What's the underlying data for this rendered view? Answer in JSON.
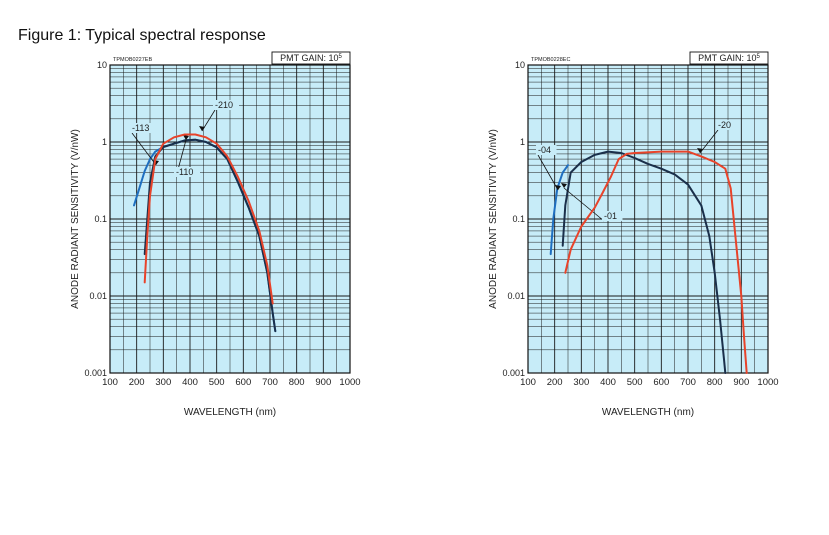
{
  "figure_title": "Figure 1: Typical spectral response",
  "chart_data": [
    {
      "type": "line",
      "id_label": "TPMOB0227EB",
      "gain_label": "PMT GAIN: 10",
      "gain_exp": "5",
      "xlabel": "WAVELENGTH (nm)",
      "ylabel": "ANODE RADIANT SENSITIVITY (V/nW)",
      "xlim": [
        100,
        1000
      ],
      "ylim": [
        0.001,
        10
      ],
      "y_scale": "log",
      "grid": true,
      "x_ticks": [
        "100",
        "200",
        "300",
        "400",
        "500",
        "600",
        "700",
        "800",
        "900",
        "1000"
      ],
      "y_ticks": [
        "10",
        "1",
        "0.1",
        "0.01",
        "0.001"
      ],
      "series": [
        {
          "name": "-113",
          "color": "#1f6fc0",
          "points": [
            [
              190,
              0.15
            ],
            [
              210,
              0.25
            ],
            [
              230,
              0.42
            ],
            [
              250,
              0.6
            ],
            [
              270,
              0.75
            ],
            [
              300,
              0.86
            ],
            [
              340,
              0.95
            ],
            [
              380,
              1.05
            ],
            [
              420,
              1.07
            ],
            [
              460,
              1.0
            ],
            [
              500,
              0.85
            ],
            [
              540,
              0.6
            ],
            [
              580,
              0.3
            ],
            [
              620,
              0.14
            ],
            [
              660,
              0.06
            ],
            [
              690,
              0.02
            ],
            [
              710,
              0.006
            ],
            [
              720,
              0.0035
            ]
          ]
        },
        {
          "name": "-110",
          "color": "#1a2f4a",
          "points": [
            [
              230,
              0.035
            ],
            [
              240,
              0.1
            ],
            [
              250,
              0.3
            ],
            [
              270,
              0.65
            ],
            [
              300,
              0.86
            ],
            [
              340,
              0.95
            ],
            [
              380,
              1.05
            ],
            [
              420,
              1.07
            ],
            [
              460,
              1.0
            ],
            [
              500,
              0.85
            ],
            [
              540,
              0.6
            ],
            [
              580,
              0.3
            ],
            [
              620,
              0.14
            ],
            [
              660,
              0.06
            ],
            [
              690,
              0.02
            ],
            [
              710,
              0.006
            ],
            [
              720,
              0.0035
            ]
          ]
        },
        {
          "name": "-210",
          "color": "#e8432a",
          "points": [
            [
              230,
              0.015
            ],
            [
              240,
              0.06
            ],
            [
              250,
              0.2
            ],
            [
              270,
              0.6
            ],
            [
              300,
              0.95
            ],
            [
              340,
              1.15
            ],
            [
              380,
              1.25
            ],
            [
              420,
              1.25
            ],
            [
              460,
              1.15
            ],
            [
              500,
              0.95
            ],
            [
              540,
              0.65
            ],
            [
              580,
              0.35
            ],
            [
              620,
              0.17
            ],
            [
              660,
              0.07
            ],
            [
              690,
              0.025
            ],
            [
              710,
              0.008
            ]
          ]
        }
      ]
    },
    {
      "type": "line",
      "id_label": "TPMOB0228EC",
      "gain_label": "PMT GAIN: 10",
      "gain_exp": "5",
      "xlabel": "WAVELENGTH (nm)",
      "ylabel": "ANODE RADIANT SENSITIVITY (V/nW)",
      "xlim": [
        100,
        1000
      ],
      "ylim": [
        0.001,
        10
      ],
      "y_scale": "log",
      "grid": true,
      "x_ticks": [
        "100",
        "200",
        "300",
        "400",
        "500",
        "600",
        "700",
        "800",
        "900",
        "1000"
      ],
      "y_ticks": [
        "10",
        "1",
        "0.1",
        "0.01",
        "0.001"
      ],
      "series": [
        {
          "name": "-04",
          "color": "#1f6fc0",
          "points": [
            [
              185,
              0.035
            ],
            [
              195,
              0.1
            ],
            [
              210,
              0.25
            ],
            [
              230,
              0.4
            ],
            [
              250,
              0.5
            ]
          ]
        },
        {
          "name": "-01",
          "color": "#1a2f4a",
          "points": [
            [
              230,
              0.045
            ],
            [
              240,
              0.15
            ],
            [
              260,
              0.4
            ],
            [
              300,
              0.55
            ],
            [
              350,
              0.68
            ],
            [
              400,
              0.75
            ],
            [
              450,
              0.72
            ],
            [
              500,
              0.62
            ],
            [
              550,
              0.52
            ],
            [
              600,
              0.45
            ],
            [
              650,
              0.38
            ],
            [
              700,
              0.28
            ],
            [
              750,
              0.15
            ],
            [
              780,
              0.06
            ],
            [
              800,
              0.02
            ],
            [
              820,
              0.005
            ],
            [
              835,
              0.0015
            ],
            [
              840,
              0.001
            ]
          ]
        },
        {
          "name": "-20",
          "color": "#e8432a",
          "points": [
            [
              240,
              0.02
            ],
            [
              260,
              0.04
            ],
            [
              300,
              0.08
            ],
            [
              350,
              0.14
            ],
            [
              380,
              0.22
            ],
            [
              410,
              0.35
            ],
            [
              440,
              0.6
            ],
            [
              470,
              0.7
            ],
            [
              500,
              0.72
            ],
            [
              600,
              0.75
            ],
            [
              700,
              0.75
            ],
            [
              750,
              0.65
            ],
            [
              800,
              0.55
            ],
            [
              840,
              0.45
            ],
            [
              860,
              0.25
            ],
            [
              880,
              0.05
            ],
            [
              900,
              0.01
            ],
            [
              910,
              0.003
            ],
            [
              920,
              0.001
            ]
          ]
        }
      ]
    }
  ]
}
